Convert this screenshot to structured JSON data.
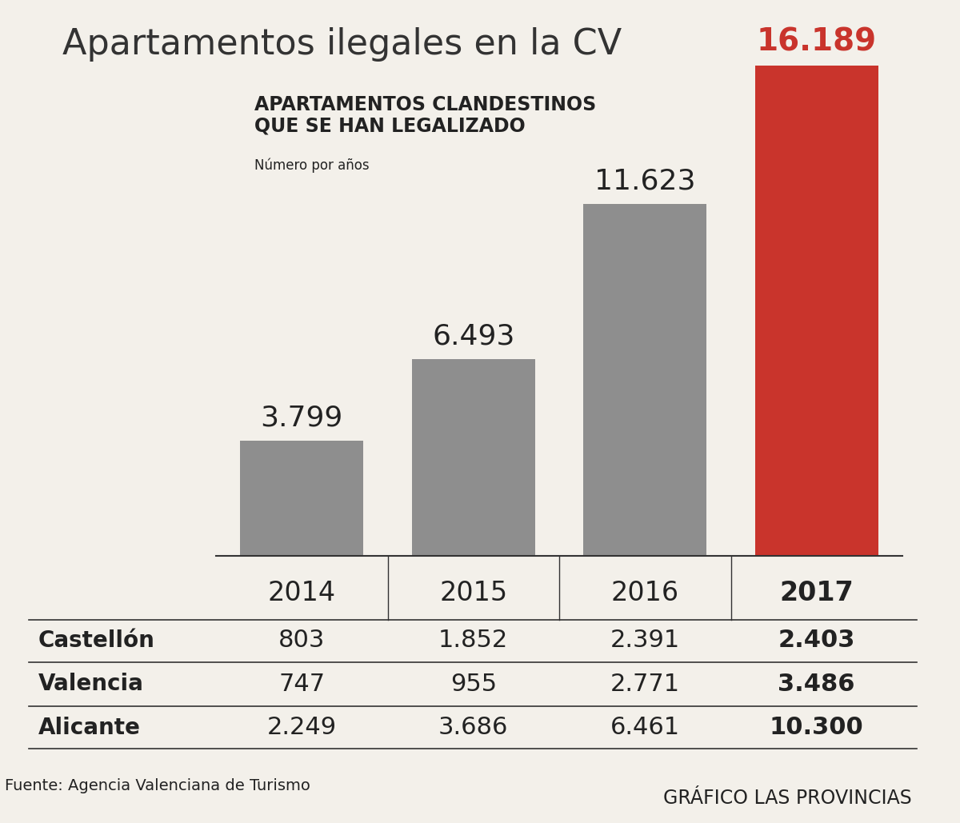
{
  "chart_data": {
    "type": "bar",
    "title": "Apartamentos ilegales en la CV",
    "subtitle": "APARTAMENTOS CLANDESTINOS\nQUE SE HAN LEGALIZADO",
    "y_label": "Número por años",
    "categories": [
      "2014",
      "2015",
      "2016",
      "2017"
    ],
    "values": [
      3799,
      6493,
      11623,
      16189
    ],
    "value_labels": [
      "3.799",
      "6.493",
      "11.623",
      "16.189"
    ],
    "colors": [
      "#8e8e8e",
      "#8e8e8e",
      "#8e8e8e",
      "#c9342c"
    ],
    "data_labels": true,
    "tick_labels": "x",
    "ylim": [
      0,
      16189
    ]
  },
  "table": {
    "rows": [
      [
        "Castellón",
        "803",
        "1.852",
        "2.391",
        "2.403"
      ],
      [
        "Valencia",
        "747",
        "955",
        "2.771",
        "3.486"
      ],
      [
        "Alicante",
        "2.249",
        "3.686",
        "6.461",
        "10.300"
      ]
    ]
  },
  "source": "Fuente: Agencia Valenciana de Turismo",
  "credit": "GRÁFICO LAS PROVINCIAS"
}
